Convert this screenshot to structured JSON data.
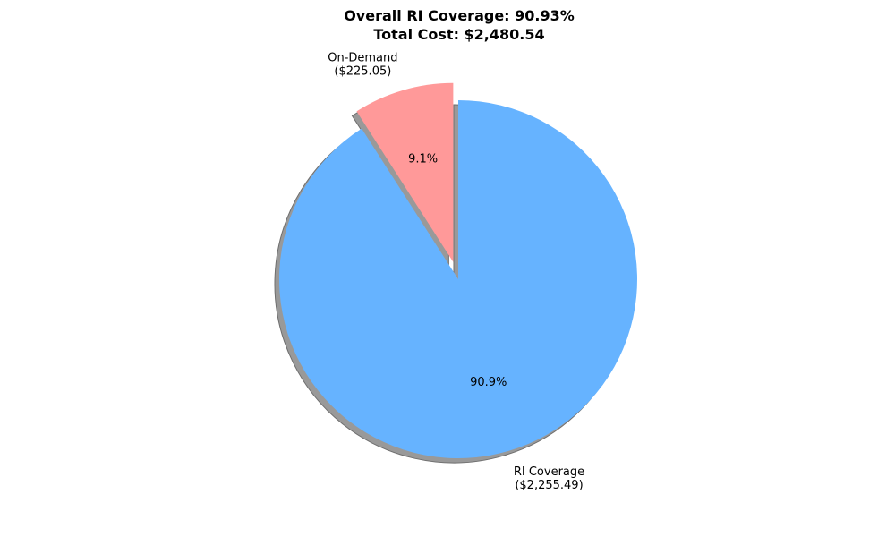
{
  "chart_data": {
    "type": "pie",
    "title_lines": [
      "Overall RI Coverage: 90.93%",
      "Total Cost: $2,480.54"
    ],
    "slices": [
      {
        "name": "RI Coverage",
        "amount_label": "($2,255.49)",
        "value": 2255.49,
        "pct_label": "90.9%",
        "color": "#66b3ff",
        "explode": false
      },
      {
        "name": "On-Demand",
        "amount_label": "($225.05)",
        "value": 225.05,
        "pct_label": "9.1%",
        "color": "#ff9999",
        "explode": true
      }
    ],
    "start_angle_deg": 90,
    "shadow": true,
    "shadow_color": "#999999"
  }
}
